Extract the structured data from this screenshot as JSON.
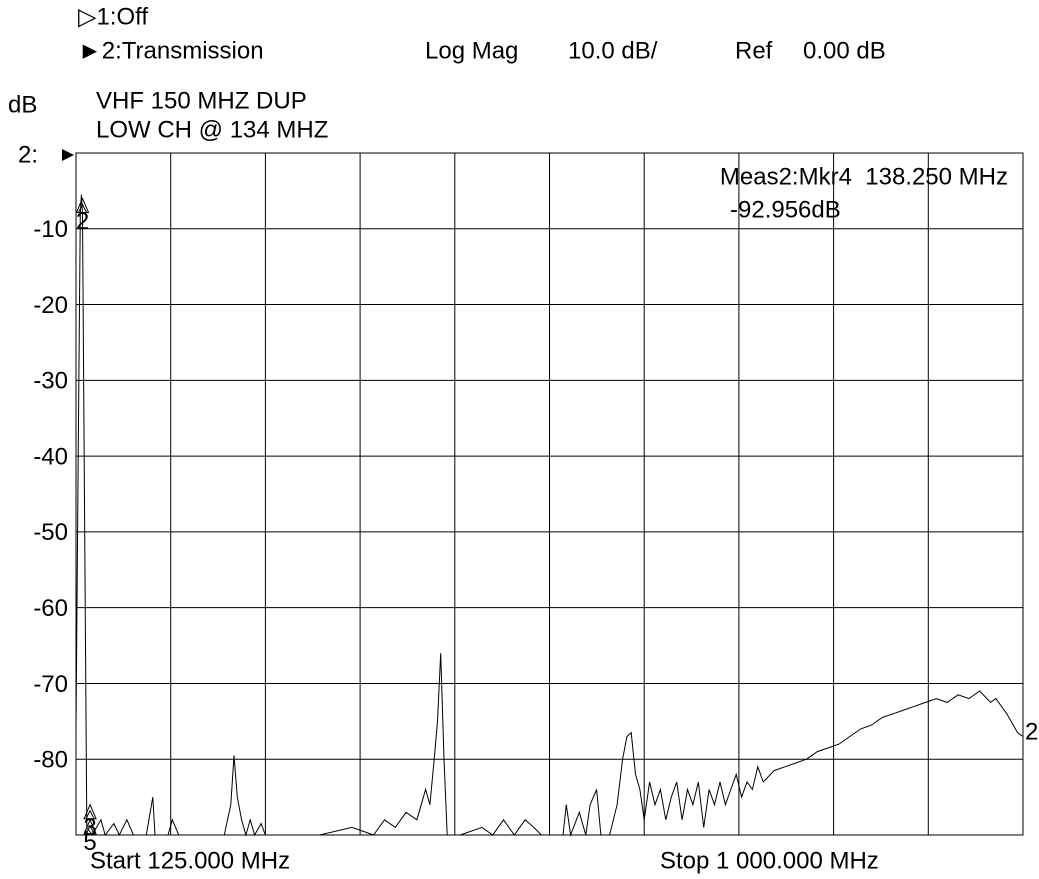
{
  "chart_data": {
    "type": "line",
    "channels": [
      "▷1:Off",
      "►2:Transmission"
    ],
    "format": [
      "Log Mag",
      "10.0 dB/",
      "Ref",
      "0.00 dB"
    ],
    "y_unit": "dB",
    "ref_label": "2:",
    "annotation": [
      "VHF 150 MHZ DUP",
      "LOW CH @ 134 MHZ"
    ],
    "readout": [
      "Meas2:Mkr4  138.250 MHz",
      "-92.956dB"
    ],
    "start_label": "Start 125.000 MHz",
    "stop_label": "Stop 1 000.000 MHz",
    "trace_label": "2",
    "xlim": [
      125,
      1000
    ],
    "ylim": [
      -90,
      0
    ],
    "yticks": [
      -80,
      -70,
      -60,
      -50,
      -40,
      -30,
      -20,
      -10
    ],
    "x_divisions": 10,
    "grid": true,
    "markers": [
      {
        "label": "2",
        "x": 131,
        "value": -6
      },
      {
        "label": "3",
        "x": 138,
        "value": -86
      },
      {
        "label": "5",
        "x": 138,
        "value": -88
      }
    ],
    "series": [
      {
        "name": "2:Transmission",
        "color": "#000000",
        "x": [
          125,
          127,
          129,
          130,
          131,
          133,
          135,
          140,
          148,
          152,
          160,
          165,
          172,
          178,
          190,
          196,
          198,
          210,
          214,
          220,
          240,
          262,
          268,
          271,
          274,
          278,
          282,
          286,
          290,
          296,
          300,
          320,
          350,
          380,
          400,
          410,
          420,
          430,
          440,
          448,
          452,
          456,
          459,
          462,
          465,
          468,
          480,
          500,
          510,
          520,
          530,
          540,
          548,
          555,
          575,
          578,
          582,
          590,
          596,
          600,
          606,
          610,
          618,
          625,
          630,
          634,
          638,
          642,
          646,
          650,
          655,
          660,
          665,
          670,
          675,
          680,
          685,
          690,
          695,
          700,
          705,
          710,
          715,
          720,
          725,
          730,
          735,
          740,
          745,
          750,
          755,
          760,
          770,
          780,
          790,
          800,
          810,
          820,
          830,
          840,
          850,
          860,
          870,
          880,
          890,
          900,
          910,
          920,
          930,
          940,
          950,
          960,
          970,
          975,
          985,
          995,
          1000
        ],
        "values": [
          -76,
          -40,
          -8,
          -5.5,
          -8,
          -50,
          -89,
          -90,
          -88,
          -90,
          -88.5,
          -90,
          -88,
          -90,
          -90,
          -85,
          -90,
          -90,
          -88,
          -90,
          -90,
          -90,
          -86,
          -79.5,
          -85,
          -88,
          -90,
          -88,
          -90,
          -88.5,
          -90,
          -90,
          -90,
          -89,
          -90,
          -88,
          -89,
          -87,
          -88,
          -84,
          -86,
          -80,
          -75,
          -66,
          -80,
          -90,
          -90,
          -89,
          -90,
          -88,
          -90,
          -88,
          -89,
          -90,
          -90,
          -86,
          -90,
          -87,
          -90,
          -86,
          -84,
          -90,
          -90,
          -86,
          -80,
          -77,
          -76.5,
          -82,
          -84,
          -88,
          -83,
          -86,
          -84,
          -88,
          -85,
          -83,
          -88,
          -84,
          -86,
          -83,
          -89,
          -84,
          -86,
          -83,
          -86,
          -84,
          -82,
          -85,
          -83,
          -84,
          -81,
          -83,
          -81.5,
          -81,
          -80.5,
          -80,
          -79,
          -78.5,
          -78,
          -77,
          -76,
          -75.5,
          -74.5,
          -74,
          -73.5,
          -73,
          -72.5,
          -72,
          -72.5,
          -71.5,
          -72,
          -71,
          -72.5,
          -72,
          -74,
          -76.5,
          -77
        ]
      }
    ]
  }
}
